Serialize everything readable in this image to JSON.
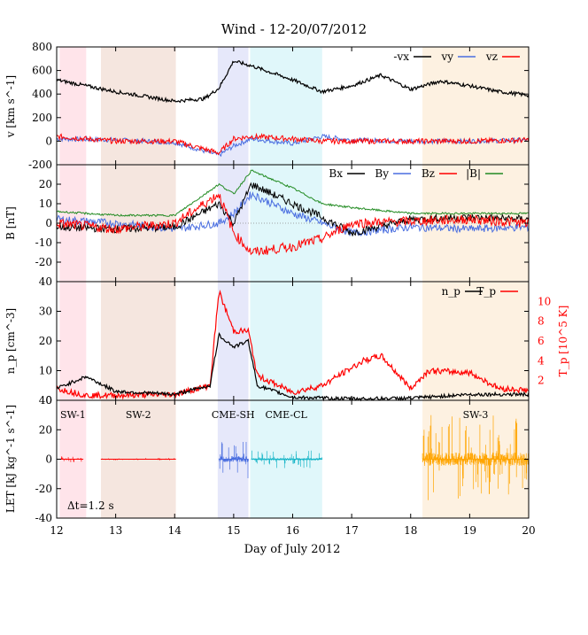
{
  "title": "Wind - 12-20/07/2012",
  "xlabel": "Day of July 2012",
  "dt_label": "Δt=1.2 s",
  "colors": {
    "black": "#000000",
    "blue": "#4a6ee0",
    "red": "#ff0000",
    "green": "#228b22",
    "cyan": "#1ab6c8",
    "orange": "#ffa500",
    "sw1_bg": "#ffe4ea",
    "sw2_bg": "#f5e6df",
    "cmesh_bg": "#e6e8fa",
    "cmecl_bg": "#e0f7fa",
    "sw3_bg": "#fdf1e1"
  },
  "chart_data": [
    {
      "id": "velocity",
      "type": "line",
      "ylabel": "v [km s^-1]",
      "ylim": [
        -200,
        800
      ],
      "yticks": [
        "-200",
        "0",
        "200",
        "400",
        "600",
        "800"
      ],
      "xlim": [
        12,
        20
      ],
      "xticks": [
        "12",
        "13",
        "14",
        "15",
        "16",
        "17",
        "18",
        "19",
        "20"
      ],
      "legend": "top-right",
      "series": [
        {
          "name": "-vx",
          "color": "black",
          "x": [
            12,
            12.5,
            13,
            13.5,
            14,
            14.5,
            14.75,
            15,
            15.3,
            16,
            16.5,
            17,
            17.5,
            18,
            18.5,
            19,
            19.5,
            20
          ],
          "values": [
            520,
            470,
            420,
            380,
            340,
            360,
            450,
            680,
            640,
            520,
            420,
            470,
            560,
            440,
            510,
            470,
            420,
            390
          ]
        },
        {
          "name": "vy",
          "color": "blue",
          "x": [
            12,
            13,
            14,
            14.75,
            15,
            15.3,
            16,
            16.5,
            17,
            18,
            19,
            20
          ],
          "values": [
            20,
            10,
            -10,
            -120,
            -40,
            20,
            -20,
            40,
            10,
            0,
            0,
            10
          ]
        },
        {
          "name": "vz",
          "color": "red",
          "x": [
            12,
            13,
            14,
            14.75,
            15,
            15.3,
            16,
            16.5,
            17,
            18,
            19,
            20
          ],
          "values": [
            40,
            0,
            0,
            -100,
            20,
            40,
            20,
            0,
            0,
            0,
            0,
            10
          ]
        }
      ]
    },
    {
      "id": "magnetic",
      "type": "line",
      "ylabel": "B [nT]",
      "ylim": [
        -30,
        30
      ],
      "yticks": [
        "-20",
        "-10",
        "0",
        "10",
        "20"
      ],
      "xlim": [
        12,
        20
      ],
      "legend": "top-right",
      "series": [
        {
          "name": "Bx",
          "color": "black",
          "x": [
            12,
            13,
            14,
            14.75,
            15,
            15.3,
            16,
            16.5,
            17,
            18,
            19,
            20
          ],
          "values": [
            -2,
            -3,
            -2,
            10,
            0,
            20,
            10,
            3,
            -5,
            2,
            3,
            2
          ]
        },
        {
          "name": "By",
          "color": "blue",
          "x": [
            12,
            13,
            14,
            14.75,
            15,
            15.3,
            16,
            16.5,
            17,
            18,
            19,
            20
          ],
          "values": [
            2,
            0,
            -3,
            0,
            5,
            15,
            5,
            0,
            -5,
            -2,
            -3,
            -2
          ]
        },
        {
          "name": "Bz",
          "color": "red",
          "x": [
            12,
            13,
            14,
            14.75,
            15,
            15.3,
            16,
            16.5,
            17,
            18,
            19,
            20
          ],
          "values": [
            0,
            -3,
            0,
            15,
            -5,
            -15,
            -12,
            -8,
            0,
            1,
            2,
            0
          ]
        },
        {
          "name": "|B|",
          "color": "green",
          "x": [
            12,
            13,
            14,
            14.75,
            15,
            15.3,
            16,
            16.5,
            17,
            18,
            19,
            20
          ],
          "values": [
            6,
            4,
            4,
            20,
            15,
            27,
            18,
            10,
            8,
            5,
            5,
            5
          ]
        }
      ]
    },
    {
      "id": "density-temperature",
      "type": "line",
      "ylabel": "n_p [cm^-3]",
      "ylabel_right": "T_p [10^5 K]",
      "ylim": [
        0,
        40
      ],
      "ylim_right": [
        0,
        12
      ],
      "yticks": [
        "0",
        "10",
        "20",
        "30",
        "40"
      ],
      "yticks_right": [
        "2",
        "4",
        "6",
        "8",
        "10"
      ],
      "xlim": [
        12,
        20
      ],
      "legend": "top-right",
      "series": [
        {
          "name": "n_p",
          "color": "black",
          "x": [
            12,
            12.5,
            13,
            14,
            14.6,
            14.75,
            15,
            15.25,
            15.4,
            16,
            17,
            18,
            19,
            20
          ],
          "values": [
            4,
            8,
            3,
            2,
            5,
            22,
            18,
            20,
            5,
            1,
            0.5,
            0.7,
            2,
            2
          ]
        },
        {
          "name": "T_p",
          "color": "red",
          "x": [
            12,
            12.5,
            13,
            14,
            14.6,
            14.75,
            15,
            15.25,
            15.4,
            16,
            16.5,
            17.2,
            17.5,
            18,
            18.3,
            19,
            19.5,
            20
          ],
          "values": [
            1.2,
            0.5,
            0.5,
            0.6,
            1.5,
            11,
            7,
            7,
            2.5,
            0.8,
            1.5,
            4,
            4.5,
            1.2,
            3,
            2.8,
            1.2,
            1
          ]
        }
      ]
    },
    {
      "id": "let",
      "type": "line",
      "ylabel": "LET [kJ kg^-1 s^-1]",
      "ylim": [
        -40,
        40
      ],
      "yticks": [
        "-40",
        "-20",
        "0",
        "20",
        "40"
      ],
      "xlim": [
        12,
        20
      ],
      "series": [
        {
          "name": "SW-1",
          "color": "red",
          "x": [
            12.05,
            12.45
          ],
          "values": [
            0,
            0
          ]
        },
        {
          "name": "SW-2",
          "color": "red",
          "x": [
            12.75,
            14.02
          ],
          "values": [
            0,
            0
          ]
        },
        {
          "name": "CME-SH",
          "color": "blue",
          "x": [
            14.75,
            15.25
          ],
          "values": [
            0,
            0
          ]
        },
        {
          "name": "CME-CL",
          "color": "cyan",
          "x": [
            15.3,
            16.5
          ],
          "values": [
            0,
            0
          ]
        },
        {
          "name": "SW-3",
          "color": "orange",
          "x": [
            18.2,
            20
          ],
          "values": [
            0,
            0
          ]
        }
      ]
    }
  ],
  "regions": [
    {
      "label": "SW-1",
      "x0": 12.05,
      "x1": 12.5,
      "bg": "sw1_bg"
    },
    {
      "label": "SW-2",
      "x0": 12.75,
      "x1": 14.02,
      "bg": "sw2_bg"
    },
    {
      "label": "CME-SH",
      "x0": 14.73,
      "x1": 15.25,
      "bg": "cmesh_bg"
    },
    {
      "label": "CME-CL",
      "x0": 15.28,
      "x1": 16.5,
      "bg": "cmecl_bg"
    },
    {
      "label": "SW-3",
      "x0": 18.2,
      "x1": 20,
      "bg": "sw3_bg"
    }
  ]
}
